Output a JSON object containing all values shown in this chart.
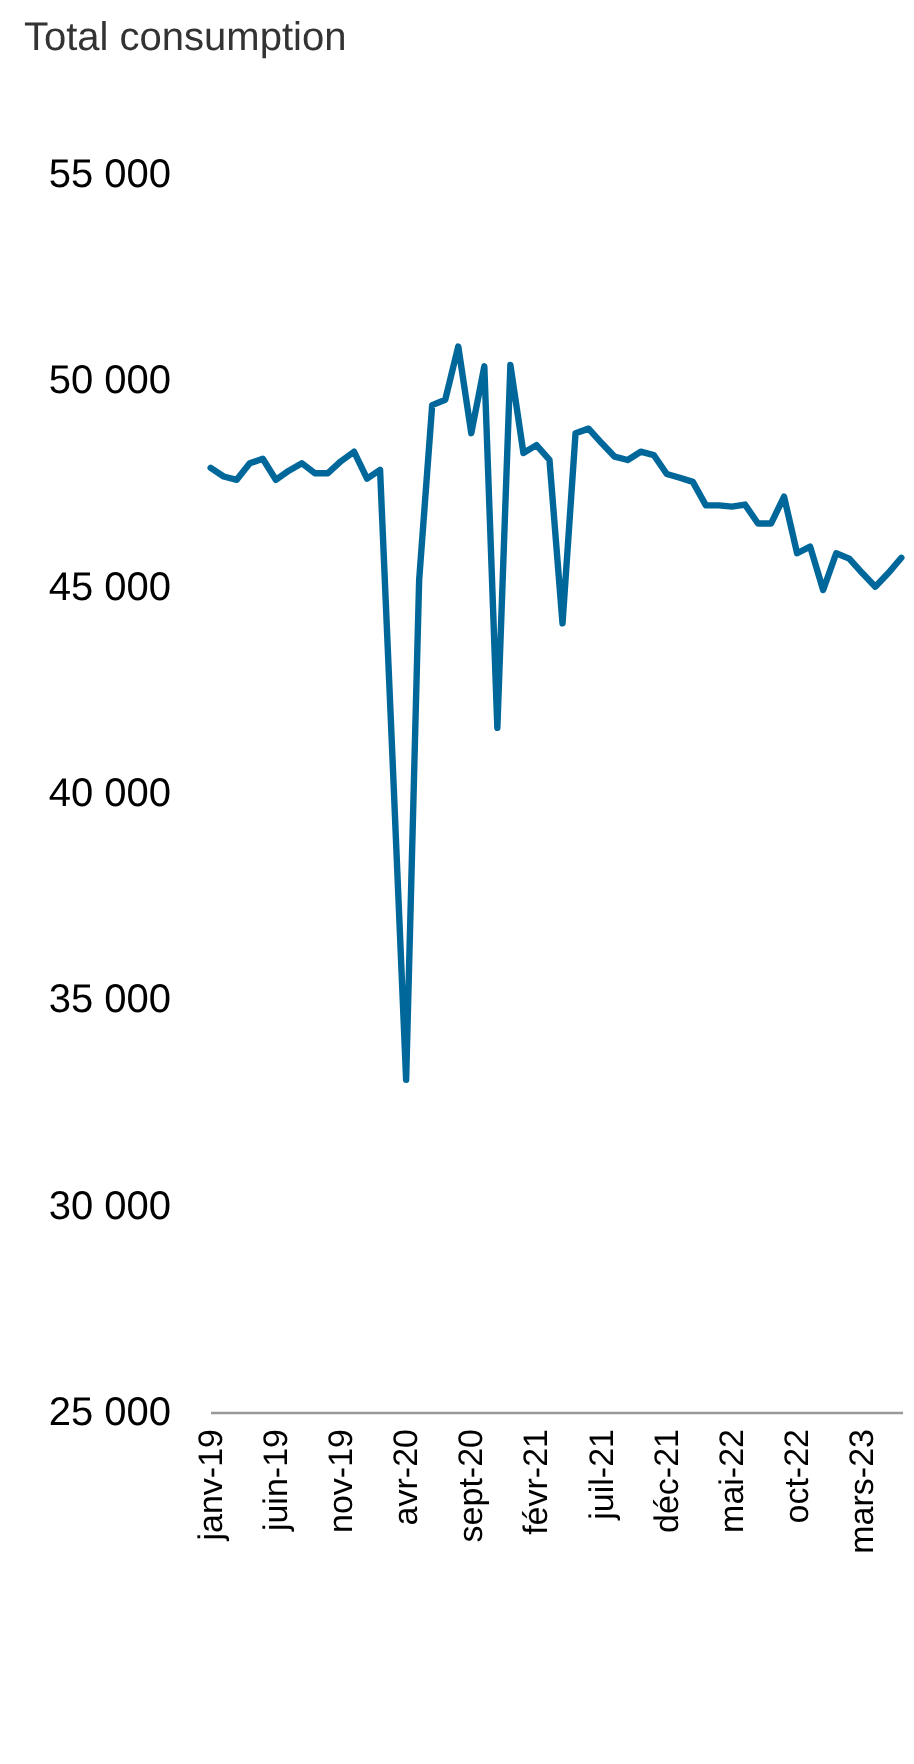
{
  "chart_data": {
    "type": "line",
    "title": "Total consumption",
    "categories": [
      "janv-19",
      null,
      null,
      null,
      null,
      "juin-19",
      null,
      null,
      null,
      null,
      "nov-19",
      null,
      null,
      null,
      null,
      "avr-20",
      null,
      null,
      null,
      null,
      "sept-20",
      null,
      null,
      null,
      null,
      "févr-21",
      null,
      null,
      null,
      null,
      "juil-21",
      null,
      null,
      null,
      null,
      "déc-21",
      null,
      null,
      null,
      null,
      "mai-22",
      null,
      null,
      null,
      null,
      "oct-22",
      null,
      null,
      null,
      null,
      "mars-23",
      null,
      null,
      null
    ],
    "series": [
      {
        "color": "#00679a",
        "values": [
          47880,
          47670,
          47590,
          47990,
          48100,
          47590,
          47810,
          47990,
          47750,
          47750,
          48040,
          48270,
          47620,
          47830,
          40500,
          33050,
          45170,
          49400,
          49530,
          50820,
          48720,
          50340,
          41580,
          50370,
          48240,
          48430,
          48070,
          44110,
          48720,
          48830,
          48480,
          48150,
          48070,
          48270,
          48190,
          47730,
          47640,
          47540,
          46970,
          46970,
          46940,
          46990,
          46530,
          46530,
          47180,
          45810,
          45970,
          44920,
          45810,
          45680,
          45330,
          45000,
          45330,
          45700
        ]
      }
    ],
    "ylim": [
      25000,
      55000
    ],
    "yticks": [
      {
        "value": 25000,
        "label": "25 000"
      },
      {
        "value": 30000,
        "label": "30 000"
      },
      {
        "value": 35000,
        "label": "35 000"
      },
      {
        "value": 40000,
        "label": "40 000"
      },
      {
        "value": 45000,
        "label": "45 000"
      },
      {
        "value": 50000,
        "label": "50 000"
      },
      {
        "value": 55000,
        "label": "55 000"
      }
    ],
    "grid": false,
    "line_style": "solid"
  }
}
